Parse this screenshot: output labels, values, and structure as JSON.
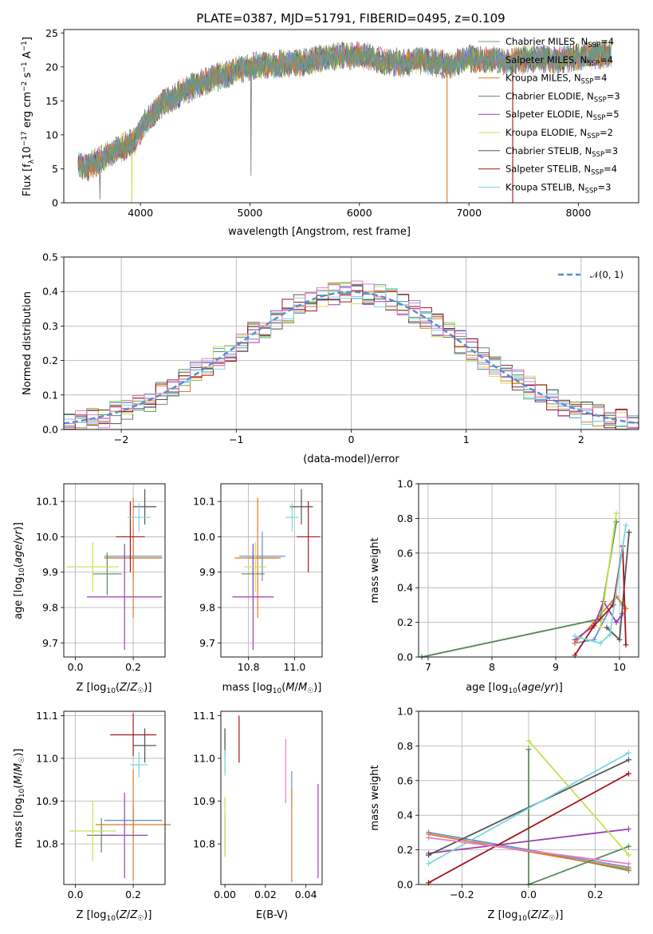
{
  "figure": {
    "title": "PLATE=0387, MJD=51791, FIBERID=0495, z=0.109"
  },
  "models": [
    {
      "label": "Chabrier MILES, N$_{SSP}$=4",
      "color": "#6b9a6b"
    },
    {
      "label": "Salpeter MILES, N$_{SSP}$=4",
      "color": "#6a93d4"
    },
    {
      "label": "Kroupa MILES, N$_{SSP}$=4",
      "color": "#e07b22"
    },
    {
      "label": "Chabrier ELODIE, N$_{SSP}$=3",
      "color": "#5c8c5c"
    },
    {
      "label": "Salpeter ELODIE, N$_{SSP}$=5",
      "color": "#9a3fb5"
    },
    {
      "label": "Kroupa ELODIE, N$_{SSP}$=2",
      "color": "#c8e052"
    },
    {
      "label": "Chabrier STELIB, N$_{SSP}$=3",
      "color": "#555555"
    },
    {
      "label": "Salpeter STELIB, N$_{SSP}$=4",
      "color": "#a3151e"
    },
    {
      "label": "Kroupa STELIB, N$_{SSP}$=3",
      "color": "#7ad6e0"
    }
  ],
  "legend_text": [
    {
      "name": "Chabrier MILES, N",
      "sub": "SSP",
      "rest": "=4"
    },
    {
      "name": "Salpeter MILES, N",
      "sub": "SSP",
      "rest": "=4"
    },
    {
      "name": "Kroupa MILES, N",
      "sub": "SSP",
      "rest": "=4"
    },
    {
      "name": "Chabrier ELODIE, N",
      "sub": "SSP",
      "rest": "=3"
    },
    {
      "name": "Salpeter ELODIE, N",
      "sub": "SSP",
      "rest": "=5"
    },
    {
      "name": "Kroupa ELODIE, N",
      "sub": "SSP",
      "rest": "=2"
    },
    {
      "name": "Chabrier STELIB, N",
      "sub": "SSP",
      "rest": "=3"
    },
    {
      "name": "Salpeter STELIB, N",
      "sub": "SSP",
      "rest": "=4"
    },
    {
      "name": "Kroupa STELIB, N",
      "sub": "SSP",
      "rest": "=3"
    }
  ],
  "chart_data": [
    {
      "id": "spectrum",
      "type": "line",
      "title": "PLATE=0387, MJD=51791, FIBERID=0495, z=0.109",
      "xlabel": "wavelength [Angstrom, rest frame]",
      "ylabel": "Flux [f_λ10^-17 erg cm^-2 s^-1 A^-1]",
      "xlim": [
        3300,
        8550
      ],
      "ylim": [
        0,
        25.5
      ],
      "xticks": [
        4000,
        5000,
        6000,
        7000,
        8000
      ],
      "yticks": [
        0,
        5,
        10,
        15,
        20,
        25
      ],
      "grid": false,
      "legend_position": "top-right",
      "continuum_x": [
        3430,
        3500,
        3650,
        3800,
        3950,
        4050,
        4200,
        4400,
        4600,
        4800,
        5000,
        5200,
        5400,
        5600,
        5800,
        6000,
        6200,
        6400,
        6600,
        6800,
        7000,
        7200,
        7400,
        7600,
        7800,
        8000,
        8200,
        8300
      ],
      "continuum_y": [
        6.0,
        5.0,
        6.5,
        8.0,
        9.0,
        12.0,
        14.5,
        16.5,
        18.0,
        19.0,
        20.0,
        20.3,
        20.5,
        21.0,
        21.5,
        21.8,
        20.8,
        20.6,
        21.0,
        20.2,
        21.3,
        21.0,
        20.8,
        21.3,
        21.0,
        21.5,
        21.8,
        22.0
      ]
    },
    {
      "id": "residuals",
      "type": "histogram",
      "xlabel": "(data-model)/error",
      "ylabel": "Normed distribution",
      "xlim": [
        -2.5,
        2.5
      ],
      "ylim": [
        0,
        0.5
      ],
      "xticks": [
        -2,
        -1,
        0,
        1,
        2
      ],
      "yticks": [
        0.0,
        0.1,
        0.2,
        0.3,
        0.4,
        0.5
      ],
      "grid": true,
      "legend": "N(0,1)",
      "legend_position": "top-right",
      "reference_curve": "standard normal N(0,1)",
      "bin_width": 0.1
    },
    {
      "id": "z-age",
      "type": "scatter",
      "xlabel": "Z [log10(Z/Z☉)]",
      "ylabel": "age [log10(age/yr)]",
      "xlim": [
        -0.04,
        0.31
      ],
      "ylim": [
        9.66,
        10.15
      ],
      "xticks": [
        0.0,
        0.2
      ],
      "yticks": [
        9.7,
        9.8,
        9.9,
        10.0,
        10.1
      ],
      "grid": true,
      "points": [
        {
          "model": 0,
          "x": 0.2,
          "y": 9.94,
          "xerr": 0.1,
          "yerr": 0.05
        },
        {
          "model": 1,
          "x": 0.2,
          "y": 9.945,
          "xerr": 0.1,
          "yerr": 0.07
        },
        {
          "model": 2,
          "x": 0.2,
          "y": 9.94,
          "xerr": 0.1,
          "yerr": 0.17
        },
        {
          "model": 3,
          "x": 0.11,
          "y": 9.895,
          "xerr": 0.05,
          "yerr": 0.06
        },
        {
          "model": 4,
          "x": 0.17,
          "y": 9.83,
          "xerr": 0.13,
          "yerr": 0.15
        },
        {
          "model": 5,
          "x": 0.06,
          "y": 9.915,
          "xerr": 0.09,
          "yerr": 0.07
        },
        {
          "model": 6,
          "x": 0.24,
          "y": 10.085,
          "xerr": 0.04,
          "yerr": 0.05
        },
        {
          "model": 7,
          "x": 0.19,
          "y": 10.0,
          "xerr": 0.05,
          "yerr": 0.1
        },
        {
          "model": 8,
          "x": 0.22,
          "y": 10.055,
          "xerr": 0.04,
          "yerr": 0.04
        }
      ]
    },
    {
      "id": "mass-age",
      "type": "scatter",
      "xlabel": "mass [log10(M/M☉)]",
      "ylabel": "",
      "xlim": [
        10.68,
        11.12
      ],
      "ylim": [
        9.66,
        10.15
      ],
      "xticks": [
        10.8,
        11.0
      ],
      "yticks": [
        9.7,
        9.8,
        9.9,
        10.0,
        10.1
      ],
      "grid": true,
      "points": [
        {
          "model": 0,
          "x": 10.86,
          "y": 9.94,
          "xerr": 0.06,
          "yerr": 0.05
        },
        {
          "model": 1,
          "x": 10.86,
          "y": 9.945,
          "xerr": 0.1,
          "yerr": 0.07
        },
        {
          "model": 2,
          "x": 10.84,
          "y": 9.94,
          "xerr": 0.1,
          "yerr": 0.17
        },
        {
          "model": 3,
          "x": 10.82,
          "y": 9.895,
          "xerr": 0.05,
          "yerr": 0.06
        },
        {
          "model": 4,
          "x": 10.82,
          "y": 9.83,
          "xerr": 0.09,
          "yerr": 0.15
        },
        {
          "model": 5,
          "x": 10.83,
          "y": 9.915,
          "xerr": 0.05,
          "yerr": 0.07
        },
        {
          "model": 6,
          "x": 11.03,
          "y": 10.085,
          "xerr": 0.05,
          "yerr": 0.05
        },
        {
          "model": 7,
          "x": 11.06,
          "y": 10.0,
          "xerr": 0.05,
          "yerr": 0.1
        },
        {
          "model": 8,
          "x": 10.99,
          "y": 10.055,
          "xerr": 0.03,
          "yerr": 0.04
        }
      ]
    },
    {
      "id": "age-weight",
      "type": "line",
      "xlabel": "age [log10(age/yr)]",
      "ylabel": "mass weight",
      "xlim": [
        6.85,
        10.3
      ],
      "ylim": [
        0,
        1.0
      ],
      "xticks": [
        7,
        8,
        9,
        10
      ],
      "yticks": [
        0.0,
        0.2,
        0.4,
        0.6,
        0.8,
        1.0
      ],
      "grid": true,
      "series": [
        {
          "model": 0,
          "x": [
            6.9,
            9.7,
            9.95
          ],
          "y": [
            0.0,
            0.22,
            0.78
          ]
        },
        {
          "model": 1,
          "x": [
            9.3,
            9.6,
            9.95,
            10.05
          ],
          "y": [
            0.08,
            0.1,
            0.35,
            0.3
          ]
        },
        {
          "model": 2,
          "x": [
            9.3,
            9.6,
            9.95,
            10.1
          ],
          "y": [
            0.08,
            0.2,
            0.35,
            0.28
          ]
        },
        {
          "model": 3,
          "x": [
            6.9,
            9.7,
            9.95
          ],
          "y": [
            0.0,
            0.22,
            0.78
          ]
        },
        {
          "model": 4,
          "x": [
            9.3,
            9.6,
            9.75,
            9.95,
            10.05
          ],
          "y": [
            0.1,
            0.18,
            0.32,
            0.2,
            0.25
          ]
        },
        {
          "model": 5,
          "x": [
            9.7,
            9.95
          ],
          "y": [
            0.17,
            0.83
          ]
        },
        {
          "model": 6,
          "x": [
            9.8,
            10.0,
            10.15
          ],
          "y": [
            0.17,
            0.1,
            0.72
          ]
        },
        {
          "model": 7,
          "x": [
            9.3,
            9.6,
            9.9,
            10.05,
            10.1
          ],
          "y": [
            0.01,
            0.18,
            0.3,
            0.64,
            0.07
          ]
        },
        {
          "model": 8,
          "x": [
            9.3,
            9.7,
            9.85,
            10.1
          ],
          "y": [
            0.12,
            0.08,
            0.13,
            0.76
          ]
        }
      ]
    },
    {
      "id": "z-mass",
      "type": "scatter",
      "xlabel": "Z [log10(Z/Z☉)]",
      "ylabel": "mass [log10(M/M☉)]",
      "xlim": [
        -0.04,
        0.31
      ],
      "ylim": [
        10.705,
        11.11
      ],
      "xticks": [
        0.0,
        0.2
      ],
      "yticks": [
        10.8,
        10.9,
        11.0,
        11.1
      ],
      "grid": true,
      "points": [
        {
          "model": 0,
          "x": 0.2,
          "y": 10.855,
          "xerr": 0.1,
          "yerr": 0.03
        },
        {
          "model": 1,
          "x": 0.2,
          "y": 10.855,
          "xerr": 0.1,
          "yerr": 0.05
        },
        {
          "model": 2,
          "x": 0.2,
          "y": 10.845,
          "xerr": 0.13,
          "yerr": 0.13
        },
        {
          "model": 3,
          "x": 0.09,
          "y": 10.82,
          "xerr": 0.05,
          "yerr": 0.04
        },
        {
          "model": 4,
          "x": 0.17,
          "y": 10.82,
          "xerr": 0.08,
          "yerr": 0.1
        },
        {
          "model": 5,
          "x": 0.06,
          "y": 10.83,
          "xerr": 0.08,
          "yerr": 0.07
        },
        {
          "model": 6,
          "x": 0.24,
          "y": 11.03,
          "xerr": 0.04,
          "yerr": 0.04
        },
        {
          "model": 7,
          "x": 0.2,
          "y": 11.055,
          "xerr": 0.08,
          "yerr": 0.05
        },
        {
          "model": 8,
          "x": 0.22,
          "y": 10.985,
          "xerr": 0.03,
          "yerr": 0.03
        }
      ]
    },
    {
      "id": "ebv-mass",
      "type": "scatter",
      "xlabel": "E(B-V)",
      "ylabel": "",
      "xlim": [
        -0.002,
        0.048
      ],
      "ylim": [
        10.705,
        11.11
      ],
      "xticks": [
        0.0,
        0.02,
        0.04
      ],
      "yticks": [
        10.8,
        10.9,
        11.0,
        11.1
      ],
      "grid": false,
      "points": [
        {
          "model": 0,
          "x": 0.0,
          "y": 11.02,
          "xerr": 0,
          "yerr": 0.05
        },
        {
          "model": 1,
          "x": 0.033,
          "y": 10.93,
          "xerr": 0,
          "yerr": 0.04
        },
        {
          "model": 2,
          "x": 0.033,
          "y": 10.82,
          "xerr": 0,
          "yerr": 0.11
        },
        {
          "model": 3,
          "x": 0.0,
          "y": 10.82,
          "xerr": 0,
          "yerr": 0.05
        },
        {
          "model": 4,
          "x": 0.046,
          "y": 10.83,
          "xerr": 0,
          "yerr": 0.11
        },
        {
          "model": 5,
          "x": 0.0,
          "y": 10.84,
          "xerr": 0,
          "yerr": 0.07
        },
        {
          "model": 6,
          "x": 0.0,
          "y": 11.04,
          "xerr": 0,
          "yerr": 0.03
        },
        {
          "model": 7,
          "x": 0.007,
          "y": 11.045,
          "xerr": 0,
          "yerr": 0.055
        },
        {
          "model": 8,
          "x": 0.0,
          "y": 10.99,
          "xerr": 0,
          "yerr": 0.03
        },
        {
          "model": 9,
          "x": 0.03,
          "y": 10.97,
          "xerr": 0,
          "yerr": 0.075
        }
      ]
    },
    {
      "id": "z-weight",
      "type": "line",
      "xlabel": "Z [log10(Z/Z☉)]",
      "ylabel": "mass weight",
      "xlim": [
        -0.33,
        0.33
      ],
      "ylim": [
        0,
        1.0
      ],
      "xticks": [
        -0.2,
        0.0,
        0.2
      ],
      "yticks": [
        0.0,
        0.2,
        0.4,
        0.6,
        0.8,
        1.0
      ],
      "grid": true,
      "series": [
        {
          "model": 0,
          "x": [
            -0.3,
            0.0,
            0.3
          ],
          "y": [
            0.3,
            0.2,
            0.08
          ]
        },
        {
          "model": 1,
          "x": [
            -0.3,
            0.3
          ],
          "y": [
            0.3,
            0.1
          ]
        },
        {
          "model": 2,
          "x": [
            -0.3,
            0.3
          ],
          "y": [
            0.29,
            0.09
          ]
        },
        {
          "model": 3,
          "x": [
            0.0,
            0.0,
            0.3
          ],
          "y": [
            0.78,
            0.0,
            0.22
          ]
        },
        {
          "model": 4,
          "x": [
            -0.3,
            0.3
          ],
          "y": [
            0.18,
            0.32
          ]
        },
        {
          "model": 5,
          "x": [
            0.0,
            0.3
          ],
          "y": [
            0.83,
            0.17
          ]
        },
        {
          "model": 6,
          "x": [
            -0.3,
            0.3
          ],
          "y": [
            0.17,
            0.72
          ]
        },
        {
          "model": 7,
          "x": [
            -0.3,
            0.3
          ],
          "y": [
            0.01,
            0.64
          ]
        },
        {
          "model": 8,
          "x": [
            -0.3,
            0.3
          ],
          "y": [
            0.12,
            0.76
          ]
        },
        {
          "model": 9,
          "x": [
            -0.3,
            0.3
          ],
          "y": [
            0.27,
            0.12
          ]
        }
      ]
    }
  ],
  "extra_colors": {
    "pink": "#e87fbf"
  },
  "label_text": {
    "flux_ylabel_main": "Flux [f",
    "flux_ylabel_sub": "λ",
    "flux_ylabel_mid": "10",
    "flux_ylabel_sup": "−17",
    "flux_ylabel_unit1": " erg cm",
    "flux_ylabel_sup2": "−2",
    "flux_ylabel_unit2": " s",
    "flux_ylabel_sup3": "−1",
    "flux_ylabel_unit3": " A",
    "flux_ylabel_sup4": "−1",
    "flux_ylabel_end": "]",
    "normal_legend": "𝒩(0, 1)"
  }
}
